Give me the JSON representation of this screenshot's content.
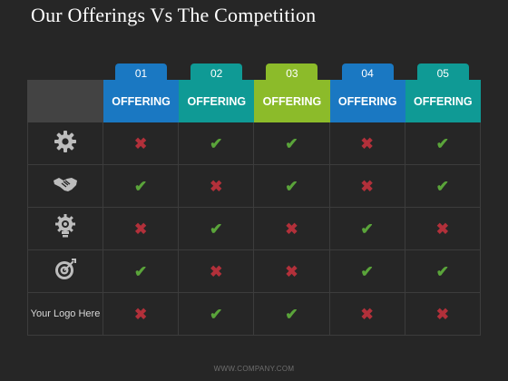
{
  "title": "Our Offerings Vs The Competition",
  "columns": [
    {
      "number": "01",
      "label": "OFFERING",
      "color": "#1a78c2"
    },
    {
      "number": "02",
      "label": "OFFERING",
      "color": "#0f9a95"
    },
    {
      "number": "03",
      "label": "OFFERING",
      "color": "#8cbb2a"
    },
    {
      "number": "04",
      "label": "OFFERING",
      "color": "#1a78c2"
    },
    {
      "number": "05",
      "label": "OFFERING",
      "color": "#0f9a95"
    }
  ],
  "rows": [
    {
      "icon": "gear-icon",
      "label": "",
      "marks": [
        "no",
        "yes",
        "yes",
        "no",
        "yes"
      ]
    },
    {
      "icon": "handshake-icon",
      "label": "",
      "marks": [
        "yes",
        "no",
        "yes",
        "no",
        "yes"
      ]
    },
    {
      "icon": "lightbulb-gear-icon",
      "label": "",
      "marks": [
        "no",
        "yes",
        "no",
        "yes",
        "no"
      ]
    },
    {
      "icon": "target-icon",
      "label": "",
      "marks": [
        "yes",
        "no",
        "no",
        "yes",
        "yes"
      ]
    },
    {
      "icon": "",
      "label": "Your Logo Here",
      "marks": [
        "no",
        "yes",
        "yes",
        "no",
        "no"
      ]
    }
  ],
  "symbols": {
    "yes": "✔",
    "no": "✖"
  },
  "footer": "WWW.COMPANY.COM"
}
